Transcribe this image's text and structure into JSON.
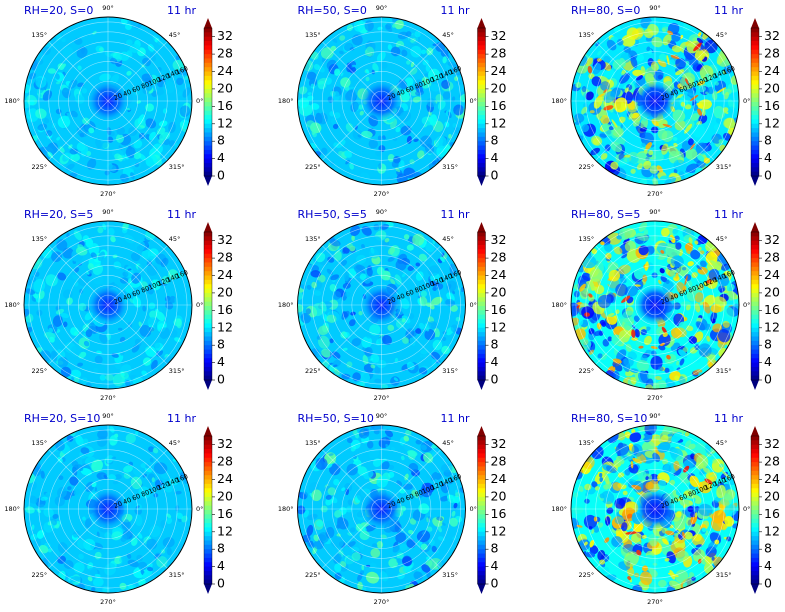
{
  "chart_data": {
    "type": "polar-heatmap",
    "layout": {
      "rows": 3,
      "cols": 3
    },
    "time_label": "11 hr",
    "angle_ticks": [
      "0°",
      "45°",
      "90°",
      "135°",
      "180°",
      "225°",
      "270°",
      "315°"
    ],
    "radial_ticks": [
      20,
      40,
      60,
      80,
      100,
      120,
      140,
      160
    ],
    "rlim": [
      0,
      170
    ],
    "colorbar": {
      "ticks": [
        0,
        4,
        8,
        12,
        16,
        20,
        24,
        28,
        32
      ],
      "range": [
        0,
        34
      ],
      "colormap": "jet",
      "extend": "both"
    },
    "grid": true,
    "title_color": "#0000cc",
    "panels": [
      {
        "title": "RH=20, S=0",
        "rh": 20,
        "s": 0,
        "background_level": 11,
        "center_level": 6,
        "variability": 1.2
      },
      {
        "title": "RH=50, S=0",
        "rh": 50,
        "s": 0,
        "background_level": 11,
        "center_level": 6,
        "variability": 1.8
      },
      {
        "title": "RH=80, S=0",
        "rh": 80,
        "s": 0,
        "background_level": 12,
        "center_level": 5,
        "variability": 4.0
      },
      {
        "title": "RH=20, S=5",
        "rh": 20,
        "s": 5,
        "background_level": 11,
        "center_level": 6,
        "variability": 1.3
      },
      {
        "title": "RH=50, S=5",
        "rh": 50,
        "s": 5,
        "background_level": 11,
        "center_level": 6,
        "variability": 2.0
      },
      {
        "title": "RH=80, S=5",
        "rh": 80,
        "s": 5,
        "background_level": 13,
        "center_level": 5,
        "variability": 4.5
      },
      {
        "title": "RH=20, S=10",
        "rh": 20,
        "s": 10,
        "background_level": 11,
        "center_level": 6,
        "variability": 1.3
      },
      {
        "title": "RH=50, S=10",
        "rh": 50,
        "s": 10,
        "background_level": 11,
        "center_level": 6,
        "variability": 2.0
      },
      {
        "title": "RH=80, S=10",
        "rh": 80,
        "s": 10,
        "background_level": 13,
        "center_level": 5,
        "variability": 4.5
      }
    ]
  }
}
